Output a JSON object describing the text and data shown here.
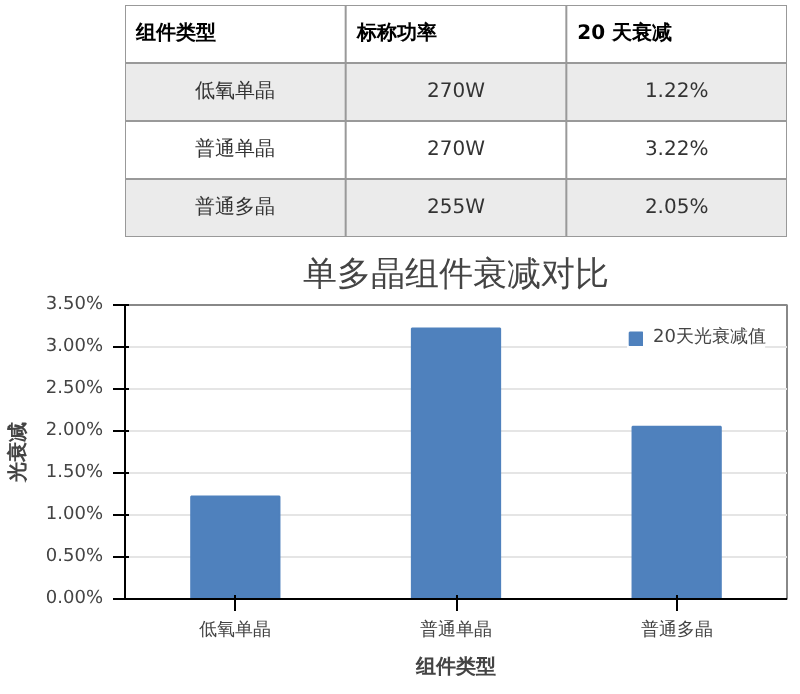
{
  "chart_data": [
    {
      "type": "other",
      "annotations": [
        "组件类型",
        "标称功率",
        "20 天衰减",
        "低氧单晶",
        "270W",
        "1.22%",
        "普通单晶",
        "270W",
        "3.22%",
        "普通多晶",
        "255W",
        "2.05%"
      ]
    },
    {
      "type": "bar",
      "title": "单多晶组件衰减对比",
      "xlabel": "组件类型",
      "ylabel": "光衰减",
      "categories": [
        "低氧单晶",
        "普通单晶",
        "普通多晶"
      ],
      "series": [
        {
          "name": "20天光衰减值",
          "color": "#4f81bd",
          "values": [
            1.22,
            3.22,
            2.05
          ]
        }
      ],
      "ylim": [
        0,
        3.5
      ],
      "yticks": [
        {
          "value": 0,
          "label": "0.00%"
        },
        {
          "value": 0.5,
          "label": "0.50%"
        },
        {
          "value": 1,
          "label": "1.00%"
        },
        {
          "value": 1.5,
          "label": "1.50%"
        },
        {
          "value": 2,
          "label": "2.00%"
        },
        {
          "value": 2.5,
          "label": "2.50%"
        },
        {
          "value": 3,
          "label": "3.00%"
        },
        {
          "value": 3.5,
          "label": "3.50%"
        }
      ],
      "grid": "y",
      "legend": "right"
    }
  ]
}
